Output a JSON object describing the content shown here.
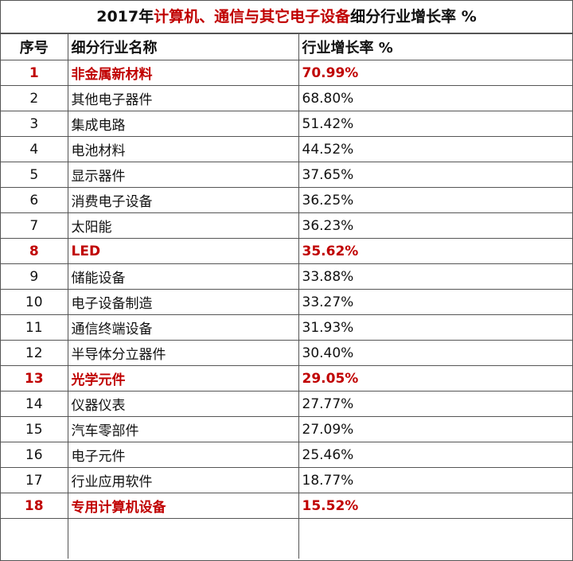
{
  "title": {
    "prefix": "2017年",
    "highlight": "计算机、通信与其它电子设备",
    "suffix": "细分行业增长率  %"
  },
  "headers": [
    "序号",
    "细分行业名称",
    "行业增长率  %"
  ],
  "rows": [
    {
      "no": "1",
      "name": "非金属新材料",
      "rate": "70.99%",
      "highlight": true
    },
    {
      "no": "2",
      "name": "其他电子器件",
      "rate": "68.80%",
      "highlight": false
    },
    {
      "no": "3",
      "name": "集成电路",
      "rate": "51.42%",
      "highlight": false
    },
    {
      "no": "4",
      "name": "电池材料",
      "rate": "44.52%",
      "highlight": false
    },
    {
      "no": "5",
      "name": "显示器件",
      "rate": "37.65%",
      "highlight": false
    },
    {
      "no": "6",
      "name": "消费电子设备",
      "rate": "36.25%",
      "highlight": false
    },
    {
      "no": "7",
      "name": "太阳能",
      "rate": "36.23%",
      "highlight": false
    },
    {
      "no": "8",
      "name": "LED",
      "rate": "35.62%",
      "highlight": true
    },
    {
      "no": "9",
      "name": "储能设备",
      "rate": "33.88%",
      "highlight": false
    },
    {
      "no": "10",
      "name": "电子设备制造",
      "rate": "33.27%",
      "highlight": false
    },
    {
      "no": "11",
      "name": "通信终端设备",
      "rate": "31.93%",
      "highlight": false
    },
    {
      "no": "12",
      "name": "半导体分立器件",
      "rate": "30.40%",
      "highlight": false
    },
    {
      "no": "13",
      "name": "光学元件",
      "rate": "29.05%",
      "highlight": true
    },
    {
      "no": "14",
      "name": "仪器仪表",
      "rate": "27.77%",
      "highlight": false
    },
    {
      "no": "15",
      "name": "汽车零部件",
      "rate": "27.09%",
      "highlight": false
    },
    {
      "no": "16",
      "name": "电子元件",
      "rate": "25.46%",
      "highlight": false
    },
    {
      "no": "17",
      "name": "行业应用软件",
      "rate": "18.77%",
      "highlight": false
    },
    {
      "no": "18",
      "name": "专用计算机设备",
      "rate": "15.52%",
      "highlight": true
    }
  ],
  "colors": {
    "highlight": "#c00000",
    "border": "#555555"
  }
}
